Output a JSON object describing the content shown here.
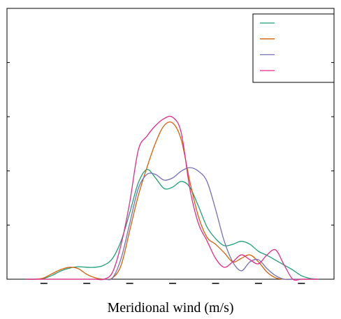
{
  "chart_data": {
    "type": "line",
    "x_label": "Meridional wind (m/s)",
    "x": [
      -17,
      -16,
      -15,
      -14,
      -13,
      -12,
      -11,
      -10,
      -9,
      -8,
      -7,
      -6,
      -5,
      -4,
      -3,
      -2,
      -1,
      0,
      1,
      2,
      3,
      4,
      5,
      6,
      7,
      8,
      9,
      10,
      11,
      12,
      13,
      14,
      15,
      16,
      17
    ],
    "series": [
      {
        "color": "#1b9e77",
        "values": [
          0,
          0,
          0.0003,
          0.0015,
          0.0031,
          0.0041,
          0.0046,
          0.0044,
          0.0044,
          0.0052,
          0.0077,
          0.0142,
          0.0245,
          0.0356,
          0.0405,
          0.0374,
          0.0335,
          0.034,
          0.0361,
          0.034,
          0.027,
          0.0193,
          0.015,
          0.0124,
          0.0129,
          0.014,
          0.0129,
          0.0103,
          0.0088,
          0.007,
          0.0052,
          0.0034,
          0.0013,
          0.0003,
          0
        ]
      },
      {
        "color": "#d95f02",
        "values": [
          0,
          0,
          0.0005,
          0.0021,
          0.0036,
          0.0044,
          0.0039,
          0.0018,
          0.0005,
          0,
          0.0005,
          0.0052,
          0.018,
          0.0309,
          0.0412,
          0.0503,
          0.0567,
          0.0577,
          0.0515,
          0.0361,
          0.0232,
          0.0155,
          0.0129,
          0.0098,
          0.0064,
          0.0077,
          0.009,
          0.0064,
          0.0026,
          0.0005,
          0,
          0,
          0,
          0,
          0
        ]
      },
      {
        "color": "#7570b3",
        "values": [
          0,
          0,
          0,
          0,
          0,
          0,
          0,
          0,
          0,
          0,
          0.0005,
          0.0077,
          0.0206,
          0.0335,
          0.0387,
          0.0387,
          0.0366,
          0.0374,
          0.0399,
          0.0412,
          0.0399,
          0.0361,
          0.0258,
          0.0142,
          0.0064,
          0.0031,
          0.0064,
          0.0072,
          0.0039,
          0.0013,
          0,
          0,
          0,
          0,
          0
        ]
      },
      {
        "color": "#e7298a",
        "values": [
          0,
          0,
          0,
          0,
          0,
          0,
          0,
          0,
          0,
          0,
          0.0026,
          0.0129,
          0.0284,
          0.0477,
          0.0528,
          0.0567,
          0.0593,
          0.0598,
          0.0541,
          0.0335,
          0.0206,
          0.0142,
          0.0077,
          0.0044,
          0.0064,
          0.009,
          0.0072,
          0.0057,
          0.009,
          0.0108,
          0.0052,
          0,
          0,
          0,
          0
        ]
      }
    ],
    "xlim": [
      -19.3,
      18.8
    ],
    "xticks": [
      -15,
      -10,
      -5,
      0,
      5,
      10,
      15
    ],
    "ylim": [
      0,
      0.1
    ],
    "yticks": [
      0,
      0.02,
      0.04,
      0.06,
      0.08,
      0.1
    ]
  }
}
